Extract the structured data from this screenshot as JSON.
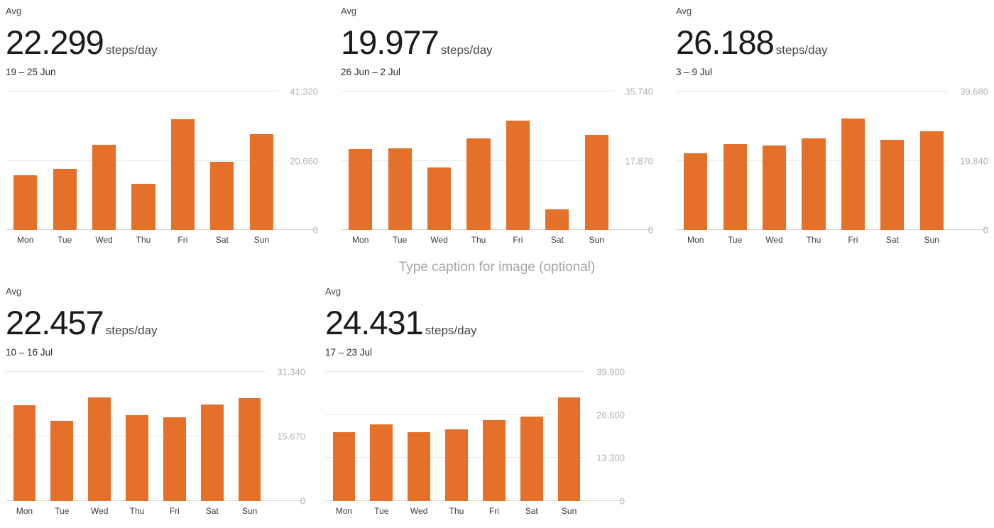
{
  "caption": {
    "placeholder": "Type caption for image (optional)"
  },
  "colors": {
    "bar": "#e5702a",
    "gridline": "#e8e8ea",
    "axis_line": "#dadadc",
    "y_tick": "#b2b2b6",
    "x_tick": "#3a3a3c",
    "heading": "#1b1b1d",
    "subtext": "#48484a",
    "caption_text": "#a6a6aa"
  },
  "chart_data": [
    {
      "type": "bar",
      "avg_label": "Avg",
      "avg_value": "22.299",
      "unit": "steps/day",
      "date_range": "19 – 25 Jun",
      "categories": [
        "Mon",
        "Tue",
        "Wed",
        "Thu",
        "Fri",
        "Sat",
        "Sun"
      ],
      "values": [
        16400,
        18200,
        25500,
        13793,
        33100,
        20400,
        28700
      ],
      "ylim": [
        0,
        41320
      ],
      "yticks": [
        {
          "label": "41.320",
          "value": 41320
        },
        {
          "label": "20.660",
          "value": 20660
        },
        {
          "label": "0",
          "value": 0
        }
      ],
      "legend": "none",
      "grid": "horizontal"
    },
    {
      "type": "bar",
      "avg_label": "Avg",
      "avg_value": "19.977",
      "unit": "steps/day",
      "date_range": "26 Jun – 2 Jul",
      "categories": [
        "Mon",
        "Tue",
        "Wed",
        "Thu",
        "Fri",
        "Sat",
        "Sun"
      ],
      "values": [
        20900,
        21000,
        16200,
        23600,
        28300,
        5300,
        24539
      ],
      "ylim": [
        0,
        35740
      ],
      "yticks": [
        {
          "label": "35.740",
          "value": 35740
        },
        {
          "label": "17.870",
          "value": 17870
        },
        {
          "label": "0",
          "value": 0
        }
      ],
      "legend": "none",
      "grid": "horizontal"
    },
    {
      "type": "bar",
      "avg_label": "Avg",
      "avg_value": "26.188",
      "unit": "steps/day",
      "date_range": "3 – 9 Jul",
      "categories": [
        "Mon",
        "Tue",
        "Wed",
        "Thu",
        "Fri",
        "Sat",
        "Sun"
      ],
      "values": [
        22000,
        24600,
        24200,
        26300,
        32000,
        25900,
        28316
      ],
      "ylim": [
        0,
        39680
      ],
      "yticks": [
        {
          "label": "39.680",
          "value": 39680
        },
        {
          "label": "19.840",
          "value": 19840
        },
        {
          "label": "0",
          "value": 0
        }
      ],
      "legend": "none",
      "grid": "horizontal"
    },
    {
      "type": "bar",
      "avg_label": "Avg",
      "avg_value": "22.457",
      "unit": "steps/day",
      "date_range": "10 – 16 Jul",
      "categories": [
        "Mon",
        "Tue",
        "Wed",
        "Thu",
        "Fri",
        "Sat",
        "Sun"
      ],
      "values": [
        23200,
        19400,
        25100,
        20800,
        20300,
        23400,
        24999
      ],
      "ylim": [
        0,
        31340
      ],
      "yticks": [
        {
          "label": "31.340",
          "value": 31340
        },
        {
          "label": "15.670",
          "value": 15670
        },
        {
          "label": "0",
          "value": 0
        }
      ],
      "legend": "none",
      "grid": "horizontal"
    },
    {
      "type": "bar",
      "avg_label": "Avg",
      "avg_value": "24.431",
      "unit": "steps/day",
      "date_range": "17 – 23 Jul",
      "categories": [
        "Mon",
        "Tue",
        "Wed",
        "Thu",
        "Fri",
        "Sat",
        "Sun"
      ],
      "values": [
        21200,
        23600,
        21200,
        22100,
        24900,
        26100,
        31917
      ],
      "ylim": [
        0,
        39900
      ],
      "yticks": [
        {
          "label": "39.900",
          "value": 39900
        },
        {
          "label": "26.600",
          "value": 26600
        },
        {
          "label": "13.300",
          "value": 13300
        },
        {
          "label": "0",
          "value": 0
        }
      ],
      "legend": "none",
      "grid": "horizontal"
    }
  ]
}
